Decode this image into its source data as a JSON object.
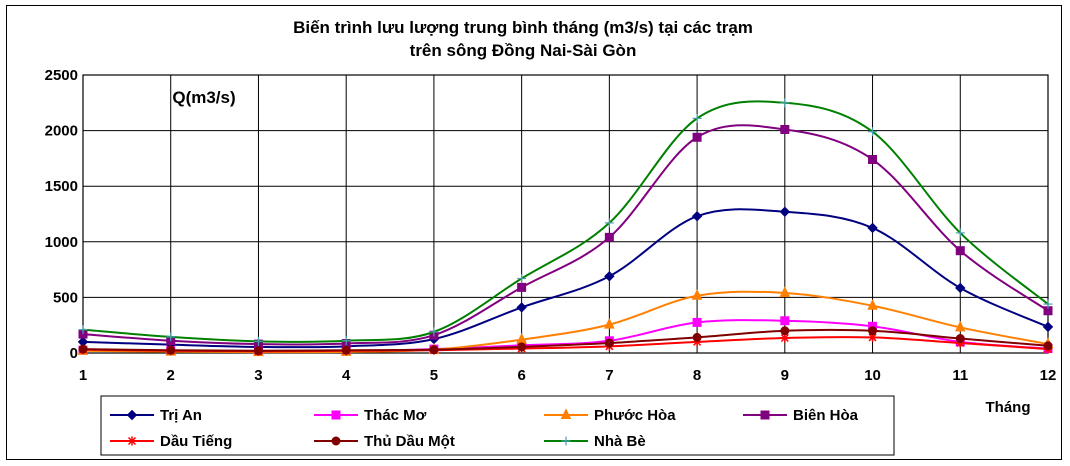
{
  "chart_data": {
    "type": "line",
    "title": [
      "Biến trình lưu lượng trung bình tháng (m3/s) tại các trạm",
      "trên sông Đồng Nai-Sài Gòn"
    ],
    "ylabel": "Q(m3/s)",
    "xlabel": "Tháng",
    "x": [
      1,
      2,
      3,
      4,
      5,
      6,
      7,
      8,
      9,
      10,
      11,
      12
    ],
    "ylim": [
      0,
      2500
    ],
    "yticks": [
      0,
      500,
      1000,
      1500,
      2000,
      2500
    ],
    "grid": true,
    "legend_position": "bottom",
    "series": [
      {
        "name": "Trị An",
        "color": "#000080",
        "marker": "diamond",
        "values": [
          100,
          75,
          55,
          60,
          125,
          410,
          690,
          1230,
          1270,
          1125,
          585,
          235
        ]
      },
      {
        "name": "Thác Mơ",
        "color": "#FF00FF",
        "marker": "square",
        "values": [
          25,
          20,
          15,
          18,
          35,
          70,
          110,
          275,
          290,
          240,
          100,
          40
        ]
      },
      {
        "name": "Phước Hòa",
        "color": "#FF8000",
        "marker": "triangle",
        "values": [
          20,
          12,
          8,
          10,
          30,
          120,
          255,
          515,
          540,
          425,
          230,
          80
        ]
      },
      {
        "name": "Biên Hòa",
        "color": "#800080",
        "marker": "square",
        "values": [
          170,
          110,
          80,
          85,
          160,
          590,
          1040,
          1940,
          2010,
          1740,
          920,
          380
        ]
      },
      {
        "name": "Dầu Tiếng",
        "color": "#FF0000",
        "marker": "star",
        "values": [
          30,
          20,
          15,
          20,
          25,
          40,
          60,
          100,
          135,
          140,
          90,
          35
        ]
      },
      {
        "name": "Thủ Dầu Một",
        "color": "#800000",
        "marker": "circle",
        "values": [
          35,
          25,
          20,
          25,
          30,
          55,
          90,
          140,
          200,
          200,
          130,
          65
        ]
      },
      {
        "name": "Nhà Bè",
        "color": "#008000",
        "marker": "plus",
        "values": [
          210,
          145,
          105,
          110,
          190,
          670,
          1170,
          2110,
          2250,
          1990,
          1080,
          440
        ]
      }
    ]
  }
}
